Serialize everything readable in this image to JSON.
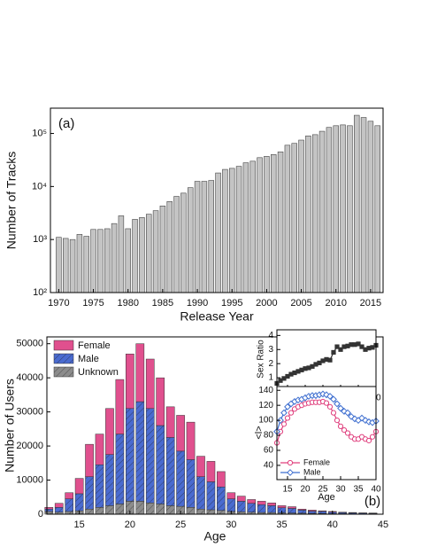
{
  "chart_data": [
    {
      "type": "bar",
      "annotation": "(a)",
      "x_label": "Release Year",
      "y_label": "Number of Tracks",
      "log_y": true,
      "color": "#c4c4c4",
      "x": [
        1970,
        1971,
        1972,
        1973,
        1974,
        1975,
        1976,
        1977,
        1978,
        1979,
        1980,
        1981,
        1982,
        1983,
        1984,
        1985,
        1986,
        1987,
        1988,
        1989,
        1990,
        1991,
        1992,
        1993,
        1994,
        1995,
        1996,
        1997,
        1998,
        1999,
        2000,
        2001,
        2002,
        2003,
        2004,
        2005,
        2006,
        2007,
        2008,
        2009,
        2010,
        2011,
        2012,
        2013,
        2014,
        2015,
        2016
      ],
      "values": [
        1100,
        1050,
        1000,
        1250,
        1150,
        1550,
        1550,
        1600,
        2000,
        2800,
        1600,
        2400,
        2600,
        3000,
        3500,
        4300,
        5200,
        6500,
        7500,
        9500,
        12500,
        12500,
        13000,
        18000,
        21000,
        22000,
        24000,
        28000,
        30000,
        35000,
        37000,
        40000,
        45000,
        60000,
        65000,
        75000,
        90000,
        95000,
        110000,
        130000,
        140000,
        145000,
        140000,
        220000,
        200000,
        170000,
        140000
      ],
      "xlim": [
        1968.8,
        2016.8
      ],
      "ylim": [
        100,
        300000
      ],
      "xticks": [
        1970,
        1975,
        1980,
        1985,
        1990,
        1995,
        2000,
        2005,
        2010,
        2015
      ],
      "yticks": [
        {
          "value": 100,
          "label": "10²"
        },
        {
          "value": 1000,
          "label": "10³"
        },
        {
          "value": 10000,
          "label": "10⁴"
        },
        {
          "value": 100000,
          "label": "10⁵"
        }
      ]
    },
    {
      "type": "stacked_bar",
      "annotation": "(b)",
      "x_label": "Age",
      "y_label": "Number of Users",
      "legend": "upper left",
      "x": [
        12,
        13,
        14,
        15,
        16,
        17,
        18,
        19,
        20,
        21,
        22,
        23,
        24,
        25,
        26,
        27,
        28,
        29,
        30,
        31,
        32,
        33,
        34,
        35,
        36,
        37,
        38,
        39,
        40,
        41,
        42,
        43,
        44
      ],
      "series": [
        {
          "name": "Unknown",
          "color": "#8c8c8c",
          "hatch": true,
          "values": [
            800,
            600,
            800,
            1000,
            1500,
            2000,
            2500,
            3000,
            3800,
            3800,
            3300,
            3000,
            2500,
            2300,
            2000,
            1500,
            1300,
            1100,
            800,
            700,
            600,
            500,
            500,
            400,
            350,
            300,
            250,
            200,
            150,
            120,
            100,
            80,
            70
          ]
        },
        {
          "name": "Male",
          "color": "#4a6bd0",
          "hatch": true,
          "values": [
            700,
            1400,
            3700,
            5000,
            9500,
            12500,
            15000,
            20500,
            27200,
            29200,
            27700,
            23000,
            20000,
            16200,
            14000,
            9500,
            8200,
            6900,
            3700,
            3100,
            2600,
            2300,
            2000,
            1500,
            1350,
            900,
            650,
            600,
            450,
            330,
            280,
            220,
            180
          ]
        },
        {
          "name": "Female",
          "color": "#e0508e",
          "hatch": false,
          "values": [
            500,
            1200,
            1800,
            4500,
            9500,
            9000,
            13500,
            16000,
            16000,
            17000,
            14500,
            14000,
            9000,
            10500,
            11000,
            6000,
            6000,
            4500,
            1800,
            1500,
            1100,
            1000,
            800,
            600,
            500,
            300,
            300,
            200,
            200,
            150,
            120,
            100,
            100
          ]
        }
      ],
      "xlim": [
        11.8,
        45
      ],
      "ylim": [
        0,
        52000
      ],
      "xticks": [
        15,
        20,
        25,
        30,
        35,
        40,
        45
      ],
      "yticks": [
        0,
        10000,
        20000,
        30000,
        40000,
        50000
      ]
    },
    {
      "type": "line",
      "y_label": "Sex Ratio",
      "x": [
        12,
        13,
        14,
        15,
        16,
        17,
        18,
        19,
        20,
        21,
        22,
        23,
        24,
        25,
        26,
        27,
        28,
        29,
        30,
        31,
        32,
        33,
        34,
        35,
        36,
        37,
        38,
        39,
        40
      ],
      "series": [
        {
          "color": "#333333",
          "marker": "square",
          "values": [
            0.6,
            0.8,
            0.95,
            1.1,
            1.25,
            1.35,
            1.45,
            1.55,
            1.65,
            1.7,
            1.8,
            1.95,
            2.05,
            2.2,
            2.3,
            2.25,
            2.8,
            3.2,
            3.0,
            3.2,
            3.25,
            3.35,
            3.35,
            3.4,
            3.2,
            3.0,
            3.1,
            3.15,
            3.3
          ]
        }
      ],
      "xlim": [
        12,
        40
      ],
      "ylim": [
        0.25,
        4.4
      ],
      "xticks": [
        15,
        20,
        25,
        30,
        35,
        40
      ],
      "yticks": [
        1,
        2,
        3,
        4
      ]
    },
    {
      "type": "line",
      "x_label": "Age",
      "y_label": "<l>",
      "legend": "lower left",
      "x": [
        12,
        13,
        14,
        15,
        16,
        17,
        18,
        19,
        20,
        21,
        22,
        23,
        24,
        25,
        26,
        27,
        28,
        29,
        30,
        31,
        32,
        33,
        34,
        35,
        36,
        37,
        38,
        39,
        40
      ],
      "series": [
        {
          "name": "Female",
          "color": "#e0407e",
          "marker": "circle",
          "values": [
            70,
            85,
            95,
            103,
            110,
            115,
            118,
            120,
            122,
            123,
            124,
            124,
            124,
            125,
            123,
            118,
            110,
            100,
            92,
            87,
            83,
            78,
            75,
            75,
            78,
            75,
            73,
            78,
            85
          ]
        },
        {
          "name": "Male",
          "color": "#3f6fd0",
          "marker": "diamond",
          "values": [
            85,
            100,
            110,
            118,
            122,
            125,
            127,
            128,
            130,
            132,
            133,
            133,
            134,
            135,
            134,
            132,
            128,
            122,
            116,
            112,
            110,
            105,
            102,
            100,
            103,
            100,
            98,
            97,
            99
          ]
        }
      ],
      "xlim": [
        12,
        40
      ],
      "ylim": [
        21,
        145
      ],
      "xticks": [
        15,
        20,
        25,
        30,
        35,
        40
      ],
      "yticks": [
        40,
        60,
        80,
        100,
        120,
        140
      ]
    }
  ]
}
